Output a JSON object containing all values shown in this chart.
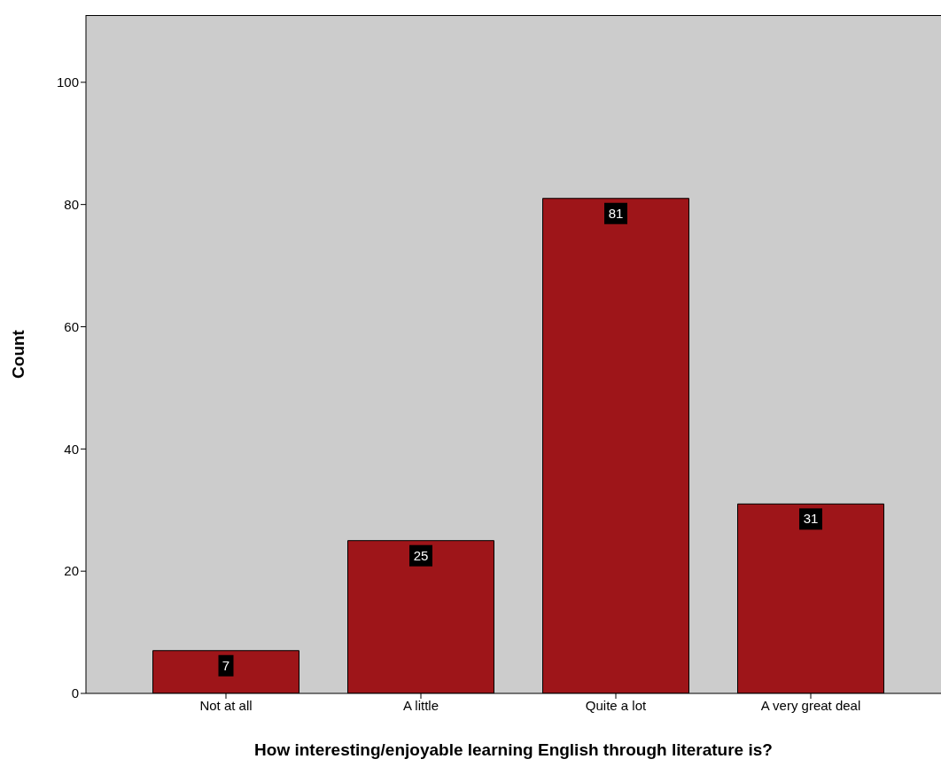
{
  "chart_data": {
    "type": "bar",
    "xlabel": "How interesting/enjoyable learning English through literature is?",
    "ylabel": "Count",
    "categories": [
      "Not at all",
      "A little",
      "Quite a lot",
      "A very great deal"
    ],
    "values": [
      7,
      25,
      81,
      31
    ],
    "color": "#9e1519",
    "ylim": [
      0,
      111
    ],
    "yticks": [
      0,
      20,
      40,
      60,
      80,
      100
    ],
    "data_labels": true
  }
}
